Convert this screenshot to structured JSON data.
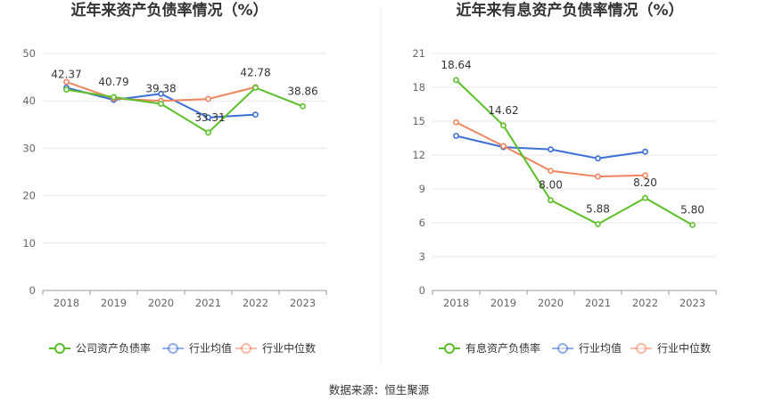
{
  "source_note": "数据来源：恒生聚源",
  "colors": {
    "company": "#5cbf2a",
    "avg": "#3b6fd6",
    "median": "#f0845f",
    "grid": "#e6e6e6",
    "axis": "#999999"
  },
  "chart_data": [
    {
      "type": "line",
      "title": "近年来资产负债率情况（%）",
      "categories": [
        "2018",
        "2019",
        "2020",
        "2021",
        "2022",
        "2023"
      ],
      "ylim": [
        0,
        50
      ],
      "yticks": [
        0,
        10,
        20,
        30,
        40,
        50
      ],
      "grid": true,
      "legend_position": "bottom",
      "series": [
        {
          "name": "公司资产负债率",
          "color_key": "company",
          "values": [
            42.37,
            40.79,
            39.38,
            33.31,
            42.78,
            38.86
          ],
          "labels": [
            "42.37",
            "40.79",
            "39.38",
            "33.31",
            "42.78",
            "38.86"
          ]
        },
        {
          "name": "行业均值",
          "color_key": "avg",
          "values": [
            42.8,
            40.2,
            41.5,
            36.5,
            37.1,
            null
          ]
        },
        {
          "name": "行业中位数",
          "color_key": "median",
          "values": [
            44.0,
            40.5,
            40.0,
            40.4,
            42.9,
            null
          ]
        }
      ]
    },
    {
      "type": "line",
      "title": "近年来有息资产负债率情况（%）",
      "categories": [
        "2018",
        "2019",
        "2020",
        "2021",
        "2022",
        "2023"
      ],
      "ylim": [
        0,
        21
      ],
      "yticks": [
        0,
        3,
        6,
        9,
        12,
        15,
        18,
        21
      ],
      "grid": true,
      "legend_position": "bottom",
      "series": [
        {
          "name": "有息资产负债率",
          "color_key": "company",
          "values": [
            18.64,
            14.62,
            8.0,
            5.88,
            8.2,
            5.8
          ],
          "labels": [
            "18.64",
            "14.62",
            "8.00",
            "5.88",
            "8.20",
            "5.80"
          ]
        },
        {
          "name": "行业均值",
          "color_key": "avg",
          "values": [
            13.7,
            12.7,
            12.5,
            11.7,
            12.3,
            null
          ]
        },
        {
          "name": "行业中位数",
          "color_key": "median",
          "values": [
            14.9,
            12.8,
            10.6,
            10.1,
            10.2,
            null
          ]
        }
      ]
    }
  ]
}
